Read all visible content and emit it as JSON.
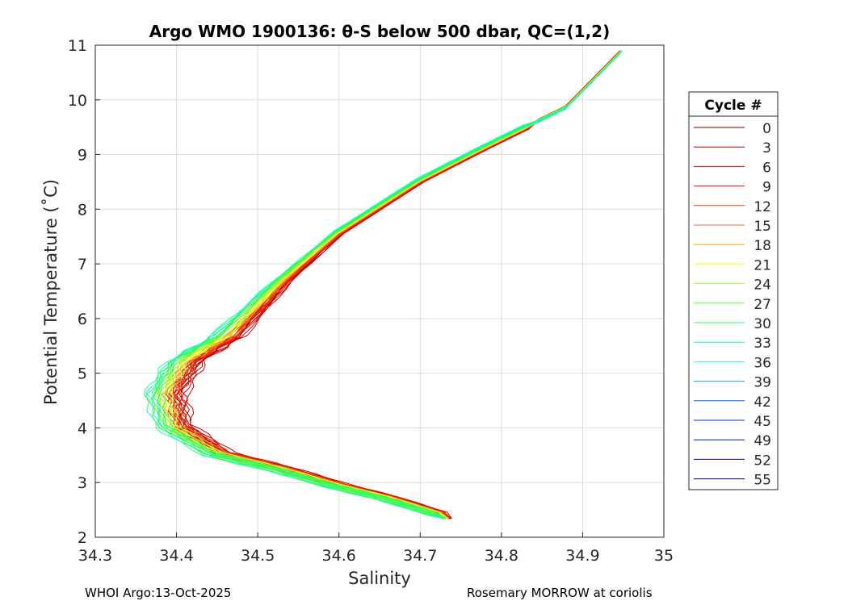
{
  "chart_data": {
    "type": "line",
    "title": "Argo WMO 1900136: θ-S below 500 dbar,  QC=(1,2)",
    "xlabel": "Salinity",
    "ylabel": "Potential Temperature (˚C)",
    "xlim": [
      34.3,
      35
    ],
    "ylim": [
      2,
      11
    ],
    "xticks": [
      "34.3",
      "34.4",
      "34.5",
      "34.6",
      "34.7",
      "34.8",
      "34.9",
      "35"
    ],
    "yticks": [
      "2",
      "3",
      "4",
      "5",
      "6",
      "7",
      "8",
      "9",
      "10",
      "11"
    ],
    "grid": true,
    "legend": {
      "title": "Cycle #",
      "placement": "right-outside"
    },
    "base_profile": {
      "salinity": [
        34.946,
        34.879,
        34.779,
        34.7,
        34.6,
        34.53,
        34.46,
        34.41,
        34.386,
        34.396,
        34.451,
        34.531,
        34.6,
        34.66,
        34.734
      ],
      "temperature": [
        10.84,
        9.83,
        9.1,
        8.5,
        7.55,
        6.66,
        5.63,
        5.19,
        4.6,
        4.0,
        3.49,
        3.2,
        2.9,
        2.68,
        2.34
      ]
    },
    "series": [
      {
        "name": "0",
        "color": "#800000",
        "s_offset": 0.006
      },
      {
        "name": "3",
        "color": "#aa0000",
        "s_offset": 0.012
      },
      {
        "name": "6",
        "color": "#d40000",
        "s_offset": 0.016
      },
      {
        "name": "9",
        "color": "#ee1100",
        "s_offset": 0.01
      },
      {
        "name": "12",
        "color": "#f03a10",
        "s_offset": 0.008
      },
      {
        "name": "15",
        "color": "#f07020",
        "s_offset": 0.004
      },
      {
        "name": "18",
        "color": "#f8a020",
        "s_offset": 0.002
      },
      {
        "name": "21",
        "color": "#ffff20",
        "s_offset": 0.0
      },
      {
        "name": "24",
        "color": "#a0ff10",
        "s_offset": -0.004
      },
      {
        "name": "27",
        "color": "#50ff30",
        "s_offset": -0.008
      },
      {
        "name": "30",
        "color": "#20ff60",
        "s_offset": -0.011
      },
      {
        "name": "33",
        "color": "#10ffa0",
        "s_offset": -0.014
      },
      {
        "name": "36",
        "color": "#10ffff",
        "s_offset": null
      },
      {
        "name": "39",
        "color": "#1aa0f0",
        "s_offset": null
      },
      {
        "name": "42",
        "color": "#1060e8",
        "s_offset": null
      },
      {
        "name": "45",
        "color": "#0a30e0",
        "s_offset": null
      },
      {
        "name": "49",
        "color": "#0010d0",
        "s_offset": null
      },
      {
        "name": "52",
        "color": "#0000b0",
        "s_offset": null
      },
      {
        "name": "55",
        "color": "#000090",
        "s_offset": null
      }
    ]
  },
  "footer": {
    "left": "WHOI Argo:13-Oct-2025",
    "right": "Rosemary MORROW at coriolis"
  }
}
